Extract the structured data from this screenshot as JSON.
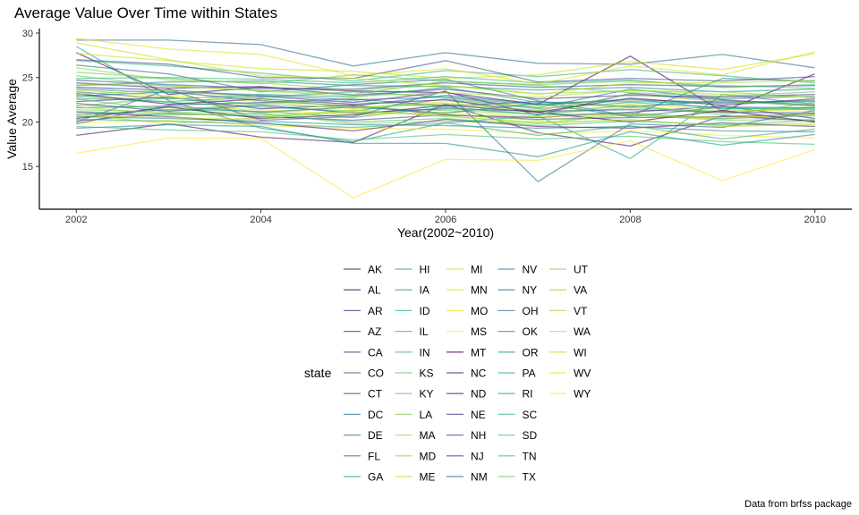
{
  "chart_data": {
    "type": "line",
    "title": "Average Value Over Time within States",
    "xlabel": "Year(2002~2010)",
    "ylabel": "Value Average",
    "caption": "Data from brfss package",
    "xlim": [
      2001.6,
      2010.4
    ],
    "ylim": [
      10.2,
      30.5
    ],
    "x_ticks": [
      2002,
      2004,
      2006,
      2008,
      2010
    ],
    "y_ticks": [
      15,
      20,
      25,
      30
    ],
    "grid": false,
    "legend": {
      "title": "state",
      "position": "bottom",
      "columns": 5
    },
    "x": [
      2002,
      2003,
      2004,
      2005,
      2006,
      2007,
      2008,
      2009,
      2010
    ],
    "series": [
      {
        "name": "AK",
        "color": "#440154",
        "values": [
          27.8,
          23.1,
          23.9,
          23.5,
          23.3,
          22.0,
          27.4,
          21.2,
          25.4
        ]
      },
      {
        "name": "AL",
        "color": "#471365",
        "values": [
          18.5,
          19.8,
          18.3,
          17.7,
          22.0,
          18.8,
          17.3,
          20.7,
          20.1
        ]
      },
      {
        "name": "AR",
        "color": "#482475",
        "values": [
          22.3,
          22.8,
          21.5,
          21.9,
          20.8,
          20.5,
          21.1,
          21.8,
          20.4
        ]
      },
      {
        "name": "AZ",
        "color": "#46337f",
        "values": [
          23.9,
          23.6,
          22.9,
          22.2,
          23.4,
          20.8,
          23.2,
          22.5,
          21.9
        ]
      },
      {
        "name": "CA",
        "color": "#414487",
        "values": [
          20.1,
          21.0,
          20.6,
          20.2,
          20.8,
          20.3,
          20.5,
          20.6,
          20.9
        ]
      },
      {
        "name": "CO",
        "color": "#3b528b",
        "values": [
          24.7,
          24.2,
          23.8,
          23.7,
          24.4,
          23.9,
          24.2,
          24.0,
          24.1
        ]
      },
      {
        "name": "CT",
        "color": "#355f8d",
        "values": [
          22.9,
          23.4,
          22.4,
          21.8,
          23.0,
          22.0,
          22.5,
          22.2,
          22.4
        ]
      },
      {
        "name": "DC",
        "color": "#2f6c8e",
        "values": [
          29.2,
          29.2,
          28.7,
          26.3,
          27.8,
          26.6,
          26.5,
          27.6,
          26.1
        ]
      },
      {
        "name": "DE",
        "color": "#2a788e",
        "values": [
          23.4,
          22.6,
          23.0,
          22.5,
          22.8,
          21.6,
          23.7,
          22.6,
          22.9
        ]
      },
      {
        "name": "FL",
        "color": "#25838e",
        "values": [
          20.6,
          20.4,
          20.1,
          19.7,
          19.6,
          19.3,
          19.5,
          19.0,
          18.9
        ]
      },
      {
        "name": "GA",
        "color": "#21918c",
        "values": [
          24.1,
          24.5,
          24.6,
          24.1,
          24.0,
          23.6,
          23.9,
          23.4,
          23.7
        ]
      },
      {
        "name": "HI",
        "color": "#1f9e89",
        "values": [
          28.5,
          22.4,
          19.3,
          17.8,
          19.9,
          20.7,
          15.9,
          23.1,
          22.0
        ]
      },
      {
        "name": "IA",
        "color": "#22a884",
        "values": [
          20.8,
          21.4,
          21.2,
          20.5,
          21.7,
          20.8,
          21.0,
          20.4,
          20.7
        ]
      },
      {
        "name": "ID",
        "color": "#2ab07f",
        "values": [
          23.0,
          22.2,
          21.7,
          21.2,
          22.6,
          21.5,
          22.2,
          21.6,
          21.4
        ]
      },
      {
        "name": "IL",
        "color": "#35b779",
        "values": [
          26.9,
          26.3,
          25.5,
          24.6,
          25.8,
          25.1,
          25.9,
          25.2,
          24.4
        ]
      },
      {
        "name": "IN",
        "color": "#44bf70",
        "values": [
          19.5,
          19.1,
          18.9,
          18.0,
          18.6,
          18.1,
          18.4,
          17.8,
          17.5
        ]
      },
      {
        "name": "KS",
        "color": "#54c568",
        "values": [
          21.8,
          22.7,
          22.0,
          21.6,
          21.3,
          20.9,
          21.6,
          21.2,
          21.5
        ]
      },
      {
        "name": "KY",
        "color": "#67cc5c",
        "values": [
          25.6,
          24.9,
          24.3,
          25.3,
          24.6,
          24.2,
          24.6,
          24.1,
          23.8
        ]
      },
      {
        "name": "LA",
        "color": "#7ad151",
        "values": [
          21.4,
          21.1,
          21.0,
          19.8,
          20.1,
          19.9,
          20.8,
          20.2,
          20.3
        ]
      },
      {
        "name": "MA",
        "color": "#8fd744",
        "values": [
          26.1,
          24.7,
          24.4,
          23.6,
          24.1,
          23.2,
          23.5,
          23.4,
          22.7
        ]
      },
      {
        "name": "MD",
        "color": "#a2da37",
        "values": [
          20.9,
          19.8,
          20.5,
          21.4,
          20.6,
          20.0,
          20.2,
          19.6,
          19.9
        ]
      },
      {
        "name": "ME",
        "color": "#b5de2b",
        "values": [
          23.6,
          22.9,
          21.0,
          21.7,
          22.0,
          21.3,
          21.8,
          21.0,
          21.7
        ]
      },
      {
        "name": "MI",
        "color": "#c8e020",
        "values": [
          27.7,
          26.9,
          26.0,
          25.7,
          24.9,
          25.3,
          26.8,
          25.9,
          27.7
        ]
      },
      {
        "name": "MN",
        "color": "#dde318",
        "values": [
          21.9,
          21.6,
          21.4,
          20.8,
          21.1,
          20.6,
          20.9,
          20.5,
          20.8
        ]
      },
      {
        "name": "MO",
        "color": "#eae51a",
        "values": [
          22.5,
          23.0,
          22.3,
          21.5,
          22.3,
          21.8,
          22.0,
          21.4,
          21.2
        ]
      },
      {
        "name": "MS",
        "color": "#fde725",
        "values": [
          19.9,
          20.2,
          19.6,
          19.3,
          19.2,
          18.7,
          19.0,
          18.5,
          18.2
        ]
      },
      {
        "name": "MT",
        "color": "#440154",
        "values": [
          20.4,
          21.7,
          20.4,
          20.8,
          21.9,
          21.1,
          20.0,
          21.3,
          20.0
        ]
      },
      {
        "name": "NC",
        "color": "#471365",
        "values": [
          23.2,
          22.0,
          22.6,
          22.0,
          22.5,
          21.1,
          22.7,
          21.9,
          22.6
        ]
      },
      {
        "name": "ND",
        "color": "#482475",
        "values": [
          21.1,
          20.6,
          19.9,
          19.0,
          20.3,
          19.5,
          19.3,
          19.9,
          19.5
        ]
      },
      {
        "name": "NE",
        "color": "#46337f",
        "values": [
          24.4,
          23.8,
          24.0,
          23.0,
          23.7,
          22.6,
          23.0,
          22.8,
          23.1
        ]
      },
      {
        "name": "NH",
        "color": "#414487",
        "values": [
          22.1,
          21.2,
          21.9,
          21.0,
          21.5,
          21.2,
          21.4,
          21.1,
          21.0
        ]
      },
      {
        "name": "NJ",
        "color": "#3b528b",
        "values": [
          27.0,
          26.5,
          25.0,
          24.9,
          26.9,
          24.5,
          24.9,
          24.6,
          25.1
        ]
      },
      {
        "name": "NM",
        "color": "#355f8d",
        "values": [
          19.8,
          21.9,
          22.2,
          22.6,
          21.8,
          22.3,
          21.7,
          22.4,
          21.8
        ]
      },
      {
        "name": "NV",
        "color": "#2f6c8e",
        "values": [
          20.0,
          23.7,
          20.2,
          20.6,
          23.5,
          13.3,
          19.8,
          19.4,
          21.3
        ]
      },
      {
        "name": "NY",
        "color": "#2a788e",
        "values": [
          26.4,
          25.4,
          23.4,
          24.2,
          24.8,
          22.4,
          20.7,
          24.9,
          24.6
        ]
      },
      {
        "name": "OH",
        "color": "#25838e",
        "values": [
          21.6,
          21.8,
          21.1,
          21.7,
          21.0,
          22.1,
          20.6,
          21.7,
          21.6
        ]
      },
      {
        "name": "OK",
        "color": "#21918c",
        "values": [
          19.3,
          19.7,
          19.5,
          17.6,
          17.6,
          16.1,
          18.9,
          17.4,
          18.6
        ]
      },
      {
        "name": "OR",
        "color": "#1f9e89",
        "values": [
          23.7,
          23.3,
          23.1,
          22.8,
          23.9,
          22.2,
          22.3,
          22.1,
          22.3
        ]
      },
      {
        "name": "PA",
        "color": "#22a884",
        "values": [
          22.7,
          22.3,
          22.8,
          23.4,
          22.8,
          21.9,
          22.6,
          21.5,
          21.6
        ]
      },
      {
        "name": "RI",
        "color": "#2ab07f",
        "values": [
          20.3,
          20.1,
          19.8,
          19.4,
          19.9,
          18.5,
          19.6,
          18.1,
          19.2
        ]
      },
      {
        "name": "SC",
        "color": "#35b779",
        "values": [
          24.9,
          25.0,
          24.8,
          24.4,
          25.1,
          24.4,
          24.7,
          23.9,
          24.2
        ]
      },
      {
        "name": "SD",
        "color": "#44bf70",
        "values": [
          21.2,
          20.8,
          20.9,
          20.0,
          20.4,
          19.6,
          20.1,
          19.7,
          20.2
        ]
      },
      {
        "name": "TN",
        "color": "#54c568",
        "values": [
          22.6,
          21.3,
          22.1,
          22.4,
          21.6,
          20.9,
          21.9,
          20.8,
          22.2
        ]
      },
      {
        "name": "TX",
        "color": "#67cc5c",
        "values": [
          25.2,
          24.0,
          23.6,
          23.1,
          24.6,
          24.1,
          23.3,
          22.9,
          23.4
        ]
      },
      {
        "name": "UT",
        "color": "#7ad151",
        "values": [
          23.1,
          23.6,
          22.7,
          21.6,
          22.1,
          21.3,
          23.1,
          22.3,
          21.9
        ]
      },
      {
        "name": "VA",
        "color": "#8fd744",
        "values": [
          21.7,
          20.9,
          20.7,
          21.1,
          20.9,
          20.2,
          20.9,
          20.3,
          21.1
        ]
      },
      {
        "name": "VT",
        "color": "#a2da37",
        "values": [
          24.2,
          24.1,
          23.5,
          22.9,
          23.3,
          22.8,
          23.6,
          23.1,
          22.8
        ]
      },
      {
        "name": "WA",
        "color": "#b5de2b",
        "values": [
          20.7,
          20.5,
          20.3,
          21.3,
          20.7,
          19.8,
          20.3,
          19.5,
          19.7
        ]
      },
      {
        "name": "WI",
        "color": "#c8e020",
        "values": [
          28.9,
          27.0,
          25.2,
          24.9,
          24.1,
          23.1,
          24.4,
          24.4,
          24.7
        ]
      },
      {
        "name": "WV",
        "color": "#dde318",
        "values": [
          29.4,
          28.2,
          27.6,
          25.2,
          26.0,
          24.3,
          26.3,
          25.3,
          27.9
        ]
      },
      {
        "name": "WY",
        "color": "#fde725",
        "values": [
          16.5,
          18.2,
          18.2,
          11.5,
          15.8,
          15.7,
          17.9,
          13.4,
          16.9
        ]
      }
    ]
  }
}
